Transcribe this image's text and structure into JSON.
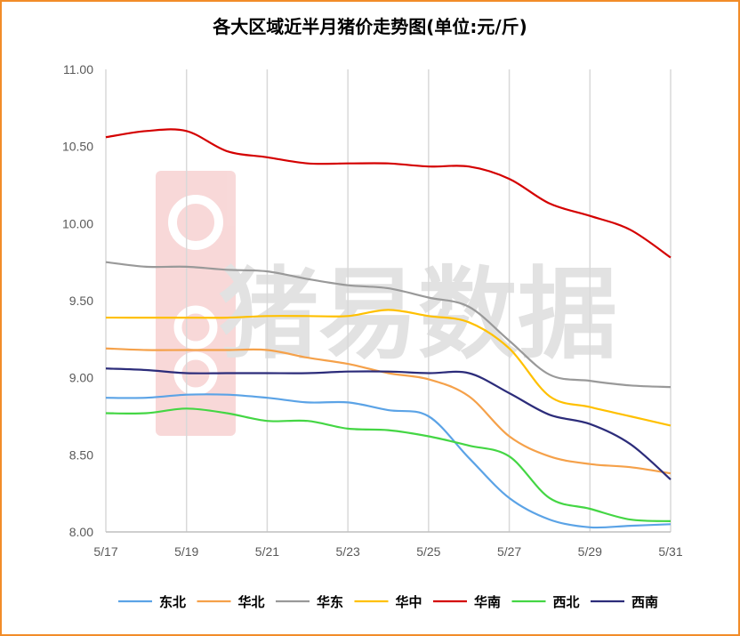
{
  "chart_data": {
    "type": "line",
    "title": "各大区域近半月猪价走势图(单位:元/斤)",
    "xlabel": "",
    "ylabel": "",
    "watermark": "猪易数据",
    "x": [
      "5/17",
      "5/18",
      "5/19",
      "5/20",
      "5/21",
      "5/22",
      "5/23",
      "5/24",
      "5/25",
      "5/26",
      "5/27",
      "5/28",
      "5/29",
      "5/30",
      "5/31"
    ],
    "x_tick_labels": [
      "5/17",
      "5/19",
      "5/21",
      "5/23",
      "5/25",
      "5/27",
      "5/29",
      "5/31"
    ],
    "y_tick_labels": [
      "8.00",
      "8.50",
      "9.00",
      "9.50",
      "10.00",
      "10.50",
      "11.00"
    ],
    "ylim": [
      8.0,
      11.0
    ],
    "grid": "vertical",
    "legend_position": "bottom",
    "series": [
      {
        "name": "东北",
        "color": "#5ba3e6",
        "values": [
          8.87,
          8.87,
          8.89,
          8.89,
          8.87,
          8.84,
          8.84,
          8.79,
          8.75,
          8.48,
          8.22,
          8.08,
          8.03,
          8.04,
          8.05
        ]
      },
      {
        "name": "华北",
        "color": "#f5a14a",
        "values": [
          9.19,
          9.18,
          9.18,
          9.18,
          9.18,
          9.13,
          9.09,
          9.03,
          8.99,
          8.88,
          8.62,
          8.49,
          8.44,
          8.42,
          8.38
        ]
      },
      {
        "name": "华东",
        "color": "#999999",
        "values": [
          9.75,
          9.72,
          9.72,
          9.7,
          9.69,
          9.64,
          9.6,
          9.58,
          9.52,
          9.46,
          9.24,
          9.02,
          8.98,
          8.95,
          8.94
        ]
      },
      {
        "name": "华中",
        "color": "#ffc000",
        "values": [
          9.39,
          9.39,
          9.39,
          9.39,
          9.4,
          9.4,
          9.4,
          9.44,
          9.4,
          9.36,
          9.19,
          8.88,
          8.81,
          8.75,
          8.69
        ]
      },
      {
        "name": "华南",
        "color": "#d40000",
        "values": [
          10.56,
          10.6,
          10.6,
          10.47,
          10.43,
          10.39,
          10.39,
          10.39,
          10.37,
          10.37,
          10.29,
          10.13,
          10.05,
          9.96,
          9.78
        ]
      },
      {
        "name": "西北",
        "color": "#44d644",
        "values": [
          8.77,
          8.77,
          8.8,
          8.77,
          8.72,
          8.72,
          8.67,
          8.66,
          8.62,
          8.56,
          8.49,
          8.22,
          8.15,
          8.08,
          8.07
        ]
      },
      {
        "name": "西南",
        "color": "#2c2c7a",
        "values": [
          9.06,
          9.05,
          9.03,
          9.03,
          9.03,
          9.03,
          9.04,
          9.04,
          9.03,
          9.03,
          8.9,
          8.76,
          8.7,
          8.57,
          8.34
        ]
      }
    ]
  }
}
